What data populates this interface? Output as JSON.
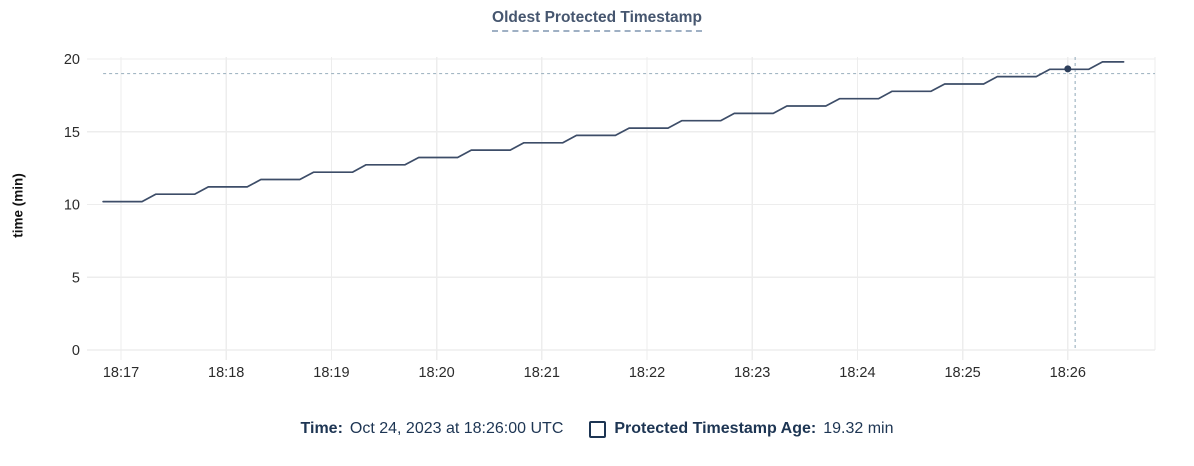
{
  "title": "Oldest Protected Timestamp",
  "colors": {
    "line": "#3d4d68",
    "hover_dot": "#2e3f5c",
    "crosshair": "#a3b7c4",
    "grid": "#ededed",
    "axis_line": "#e4e4e4",
    "title_text": "#46566f",
    "title_underline": "#9fb0c4",
    "tick_text": "#2b2b2b",
    "legend_text": "#1d3553"
  },
  "chart_data": {
    "type": "line",
    "title": "Oldest Protected Timestamp",
    "xlabel": "",
    "ylabel": "time (min)",
    "x_tick_labels": [
      "18:17",
      "18:18",
      "18:19",
      "18:20",
      "18:21",
      "18:22",
      "18:23",
      "18:24",
      "18:25",
      "18:26"
    ],
    "x_unit": "minutes after 18:17 UTC",
    "xlim": [
      -0.32,
      9.83
    ],
    "y_ticks": [
      0,
      5,
      10,
      15,
      20
    ],
    "ylim": [
      0,
      20
    ],
    "grid": true,
    "legend_position": "bottom",
    "series": [
      {
        "name": "Protected Timestamp Age",
        "unit": "min",
        "points": [
          [
            -0.17,
            10.2
          ],
          [
            0.2,
            10.2
          ],
          [
            0.33,
            10.71
          ],
          [
            0.7,
            10.71
          ],
          [
            0.83,
            11.21
          ],
          [
            1.2,
            11.21
          ],
          [
            1.33,
            11.72
          ],
          [
            1.7,
            11.72
          ],
          [
            1.83,
            12.22
          ],
          [
            2.2,
            12.22
          ],
          [
            2.33,
            12.73
          ],
          [
            2.7,
            12.73
          ],
          [
            2.83,
            13.23
          ],
          [
            3.2,
            13.23
          ],
          [
            3.33,
            13.74
          ],
          [
            3.7,
            13.74
          ],
          [
            3.83,
            14.24
          ],
          [
            4.2,
            14.24
          ],
          [
            4.33,
            14.75
          ],
          [
            4.7,
            14.75
          ],
          [
            4.83,
            15.25
          ],
          [
            5.2,
            15.25
          ],
          [
            5.33,
            15.76
          ],
          [
            5.7,
            15.76
          ],
          [
            5.83,
            16.26
          ],
          [
            6.2,
            16.26
          ],
          [
            6.33,
            16.77
          ],
          [
            6.7,
            16.77
          ],
          [
            6.83,
            17.27
          ],
          [
            7.2,
            17.27
          ],
          [
            7.33,
            17.78
          ],
          [
            7.7,
            17.78
          ],
          [
            7.83,
            18.28
          ],
          [
            8.2,
            18.28
          ],
          [
            8.33,
            18.79
          ],
          [
            8.7,
            18.79
          ],
          [
            8.83,
            19.29
          ],
          [
            9.2,
            19.29
          ],
          [
            9.33,
            19.8
          ],
          [
            9.53,
            19.8
          ]
        ]
      }
    ],
    "hover": {
      "snap_point_x": 9.0,
      "snap_point_value": 19.32,
      "snap_point_time": "18:26:00",
      "crosshair_x": 9.07,
      "crosshair_y": 19.0
    }
  },
  "legend": {
    "time_label": "Time:",
    "time_value": "Oct 24, 2023 at 18:26:00 UTC",
    "series_label": "Protected Timestamp Age:",
    "series_value": "19.32 min",
    "series_checkbox_checked": false
  }
}
